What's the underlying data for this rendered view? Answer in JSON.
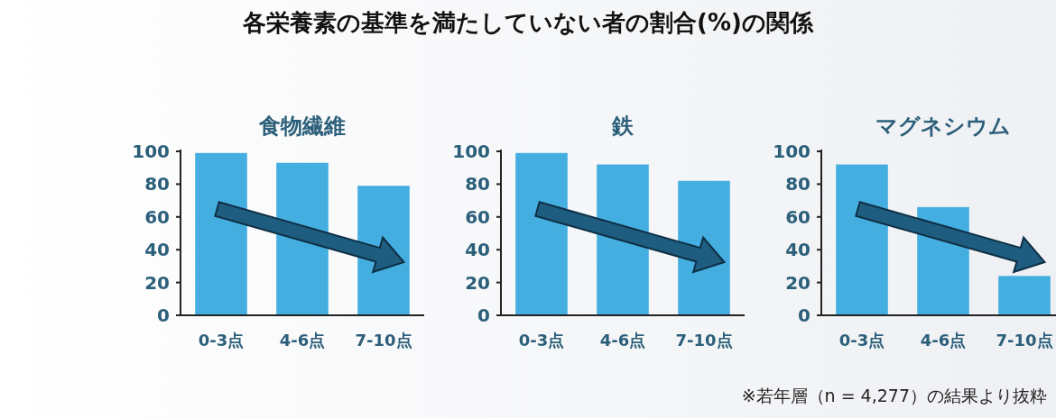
{
  "chart_data": [
    {
      "type": "other",
      "title": "各栄養素の基準を満たしていない者の割合(%)の関係",
      "annotations": [
        "※若年層（n = 4,277）の結果より抜粋"
      ]
    },
    {
      "type": "bar",
      "title": "食物繊維",
      "categories": [
        "0-3点",
        "4-6点",
        "7-10点"
      ],
      "values": [
        99,
        93,
        79
      ],
      "color": "#45aee0",
      "ylim": [
        0,
        100
      ],
      "yticks": [
        0,
        20,
        40,
        60,
        80,
        100
      ],
      "grid": false
    },
    {
      "type": "bar",
      "title": "鉄",
      "categories": [
        "0-3点",
        "4-6点",
        "7-10点"
      ],
      "values": [
        99,
        92,
        82
      ],
      "color": "#45aee0",
      "ylim": [
        0,
        100
      ],
      "yticks": [
        0,
        20,
        40,
        60,
        80,
        100
      ],
      "grid": false
    },
    {
      "type": "bar",
      "title": "マグネシウム",
      "categories": [
        "0-3点",
        "4-6点",
        "7-10点"
      ],
      "values": [
        92,
        66,
        24
      ],
      "color": "#45aee0",
      "ylim": [
        0,
        100
      ],
      "yticks": [
        0,
        20,
        40,
        60,
        80,
        100
      ],
      "grid": false
    }
  ]
}
